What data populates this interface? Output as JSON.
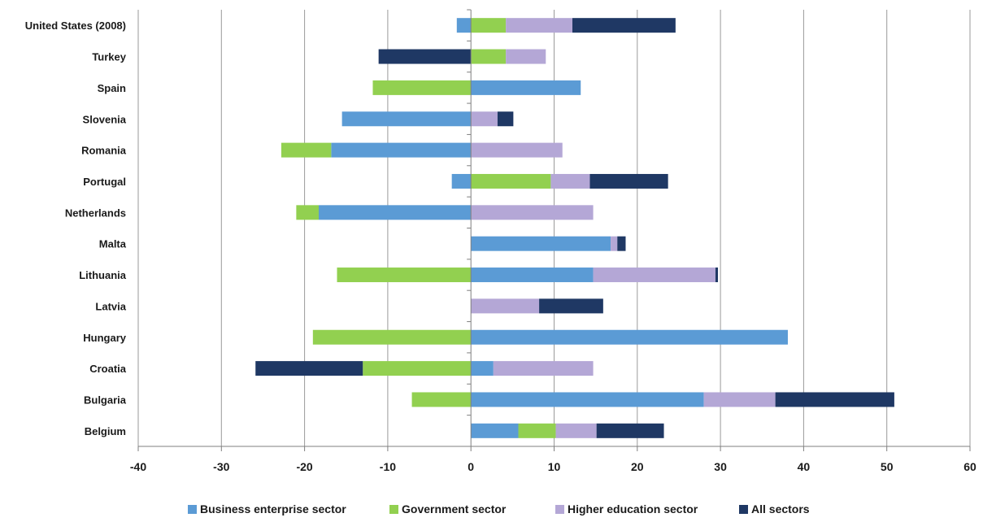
{
  "chart_data": {
    "type": "bar",
    "orientation": "horizontal",
    "stacked": "diverging",
    "categories": [
      "United States (2008)",
      "Turkey",
      "Spain",
      "Slovenia",
      "Romania",
      "Portugal",
      "Netherlands",
      "Malta",
      "Lithuania",
      "Latvia",
      "Hungary",
      "Croatia",
      "Bulgaria",
      "Belgium"
    ],
    "series": [
      {
        "name": "Business enterprise sector",
        "color": "#5b9bd5",
        "values": [
          -1.7,
          0,
          13.2,
          -15.5,
          -16.8,
          -2.3,
          -18.3,
          16.8,
          14.7,
          0,
          38.1,
          2.7,
          28.0,
          5.7
        ]
      },
      {
        "name": "Government sector",
        "color": "#92d050",
        "values": [
          4.2,
          4.2,
          -11.8,
          0,
          -6.0,
          9.6,
          -2.7,
          0,
          -16.1,
          0,
          -19.0,
          -13.0,
          -7.1,
          4.5
        ]
      },
      {
        "name": "Higher education sector",
        "color": "#b4a7d6",
        "values": [
          8.0,
          4.8,
          0,
          3.2,
          11.0,
          4.7,
          14.7,
          0.8,
          14.7,
          8.2,
          0,
          12.0,
          8.6,
          4.9
        ]
      },
      {
        "name": "All sectors",
        "color": "#1f3864",
        "values": [
          12.4,
          -11.1,
          0,
          1.9,
          0,
          9.4,
          0,
          1.0,
          0.3,
          7.7,
          0,
          -12.9,
          14.3,
          8.1
        ]
      }
    ],
    "xlim": [
      -40,
      60
    ],
    "xticks": [
      "-40",
      "-30",
      "-20",
      "-10",
      "0",
      "10",
      "20",
      "30",
      "40",
      "50",
      "60"
    ],
    "grid": "vertical",
    "legend": "bottom"
  }
}
